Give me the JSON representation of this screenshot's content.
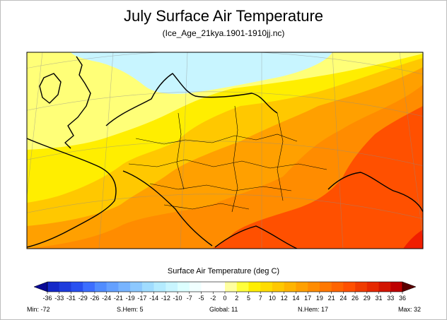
{
  "chart_data": {
    "type": "heatmap",
    "title": "July Surface Air Temperature",
    "subtitle": "(Ice_Age_21kya.1901-1910jj.nc)",
    "colorbar_label": "Surface Air Temperature (deg C)",
    "colorbar_ticks": [
      -36,
      -33,
      -31,
      -29,
      -26,
      -24,
      -21,
      -19,
      -17,
      -14,
      -12,
      -10,
      -7,
      -5,
      -2,
      0,
      2,
      5,
      7,
      10,
      12,
      14,
      17,
      19,
      21,
      24,
      26,
      29,
      31,
      33,
      36
    ],
    "colorbar_colors": [
      "#1428c8",
      "#1e3cdc",
      "#2850f0",
      "#3c6eff",
      "#508cff",
      "#64a0ff",
      "#78b4ff",
      "#8cc8ff",
      "#a0dcff",
      "#b4ebff",
      "#c8f5ff",
      "#dcffff",
      "#f0ffff",
      "#ffffff",
      "#ffffff",
      "#ffffa0",
      "#ffff3c",
      "#ffee00",
      "#ffdc00",
      "#ffc800",
      "#ffb400",
      "#ffa000",
      "#ff8c00",
      "#ff7800",
      "#ff6400",
      "#ff5000",
      "#f03c00",
      "#e62800",
      "#d21400",
      "#be0000"
    ],
    "region_legend": {
      "cold": "#c8f5ff",
      "pale_yellow": "#ffff78",
      "yellow": "#ffee00",
      "gold": "#ffc800",
      "orange": "#ffa000",
      "dark_orange": "#ff8c00",
      "red_orange": "#ff5000",
      "red": "#f01e00"
    },
    "stats": [
      {
        "label": "Min:",
        "value": "-72"
      },
      {
        "label": "S.Hem:",
        "value": "5"
      },
      {
        "label": "Global:",
        "value": "11"
      },
      {
        "label": "N.Hem:",
        "value": "17"
      },
      {
        "label": "Max:",
        "value": "32"
      }
    ]
  }
}
